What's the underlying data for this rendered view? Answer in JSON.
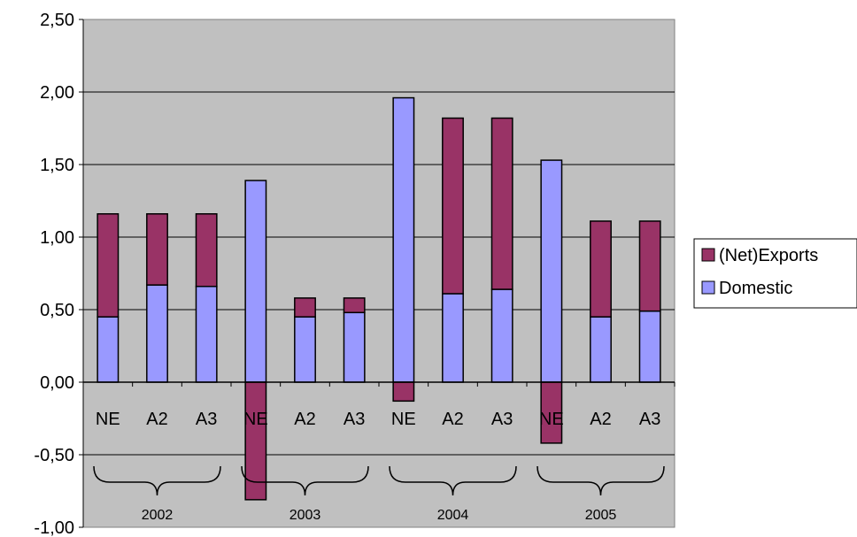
{
  "chart_data": {
    "type": "bar",
    "stacked": true,
    "categories": [
      "NE",
      "A2",
      "A3",
      "NE",
      "A2",
      "A3",
      "NE",
      "A2",
      "A3",
      "NE",
      "A2",
      "A3"
    ],
    "groups": [
      "2002",
      "2003",
      "2004",
      "2005"
    ],
    "series": [
      {
        "name": "Domestic",
        "color": "#9999ff",
        "values": [
          0.45,
          0.67,
          0.66,
          1.39,
          0.45,
          0.48,
          1.96,
          0.61,
          0.64,
          1.53,
          0.45,
          0.49
        ]
      },
      {
        "name": "(Net)Exports",
        "color": "#993366",
        "values": [
          0.71,
          0.49,
          0.5,
          -0.81,
          0.13,
          0.1,
          -0.13,
          1.21,
          1.18,
          -0.42,
          0.66,
          0.62
        ]
      }
    ],
    "legend_order": [
      "(Net)Exports",
      "Domestic"
    ],
    "ylim": [
      -1.0,
      2.5
    ],
    "ytick_labels": [
      "2,50",
      "2,00",
      "1,50",
      "1,00",
      "0,50",
      "0,00",
      "-0,50",
      "-1,00"
    ],
    "grid": true,
    "plot_background": "#c0c0c0",
    "legend_position": "right"
  }
}
